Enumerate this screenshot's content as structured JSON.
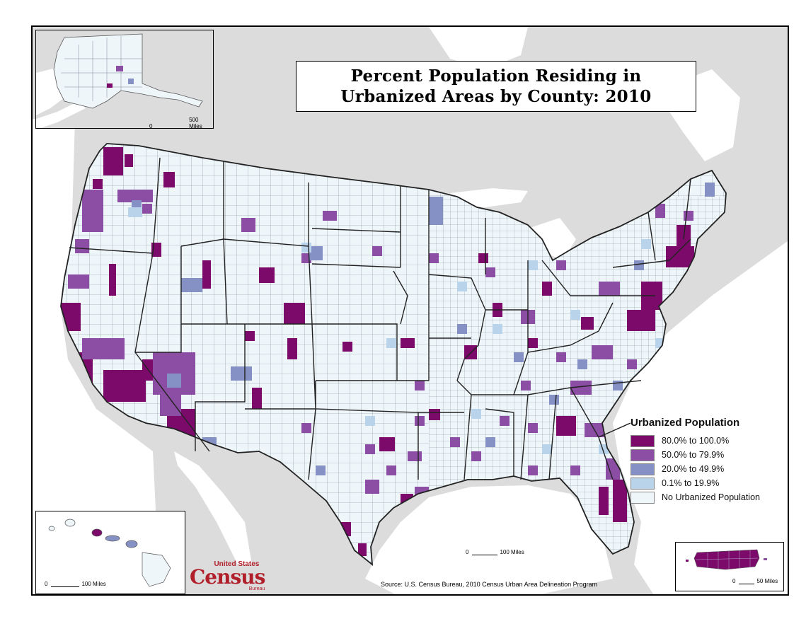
{
  "title": {
    "line1": "Percent Population Residing in",
    "line2": "Urbanized Areas by County:  2010"
  },
  "legend": {
    "title": "Urbanized Population",
    "placement": "lower-right",
    "items": [
      {
        "label": "80.0% to 100.0%",
        "color": "#7b0a6b"
      },
      {
        "label": "50.0% to 79.9%",
        "color": "#8c4da4"
      },
      {
        "label": "20.0% to 49.9%",
        "color": "#8591c5"
      },
      {
        "label": "0.1% to 19.9%",
        "color": "#b9d3ea"
      },
      {
        "label": "No Urbanized Population",
        "color": "#eef6fa"
      }
    ]
  },
  "scalebars": {
    "alaska": {
      "zero": "0",
      "label": "500 Miles"
    },
    "contiguous": {
      "zero": "0",
      "label": "100 Miles"
    },
    "hawaii": {
      "zero": "0",
      "label": "100 Miles"
    },
    "puerto_rico": {
      "zero": "0",
      "label": "50 Miles"
    }
  },
  "logo": {
    "line1": "United States",
    "line2": "Census",
    "line3": "Bureau"
  },
  "source": "Source:  U.S. Census Bureau, 2010 Census Urban Area Delineation Program",
  "colors": {
    "land_outside": "#dcdcdc",
    "water": "#ffffff",
    "county_border": "#7a8a96",
    "state_border": "#222222"
  },
  "insets": [
    "alaska-inset",
    "hawaii-inset",
    "puerto-rico-inset"
  ]
}
